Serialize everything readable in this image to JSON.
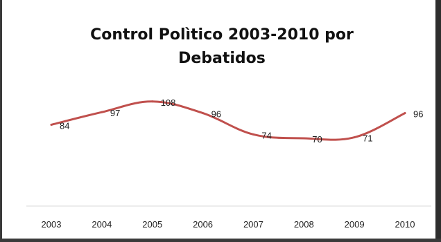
{
  "chart_data": {
    "type": "line",
    "title": "Control Polìtico 2003-2010  por\nDebatidos",
    "xlabel": "",
    "ylabel": "",
    "categories": [
      "2003",
      "2004",
      "2005",
      "2006",
      "2007",
      "2008",
      "2009",
      "2010"
    ],
    "series": [
      {
        "values": [
          84,
          97,
          108,
          96,
          74,
          70,
          71,
          96
        ]
      }
    ],
    "ylim": [
      0,
      130
    ],
    "grid": false,
    "legend": "none",
    "line_color": "#c0504d",
    "axis_color": "#d9d9d9"
  }
}
